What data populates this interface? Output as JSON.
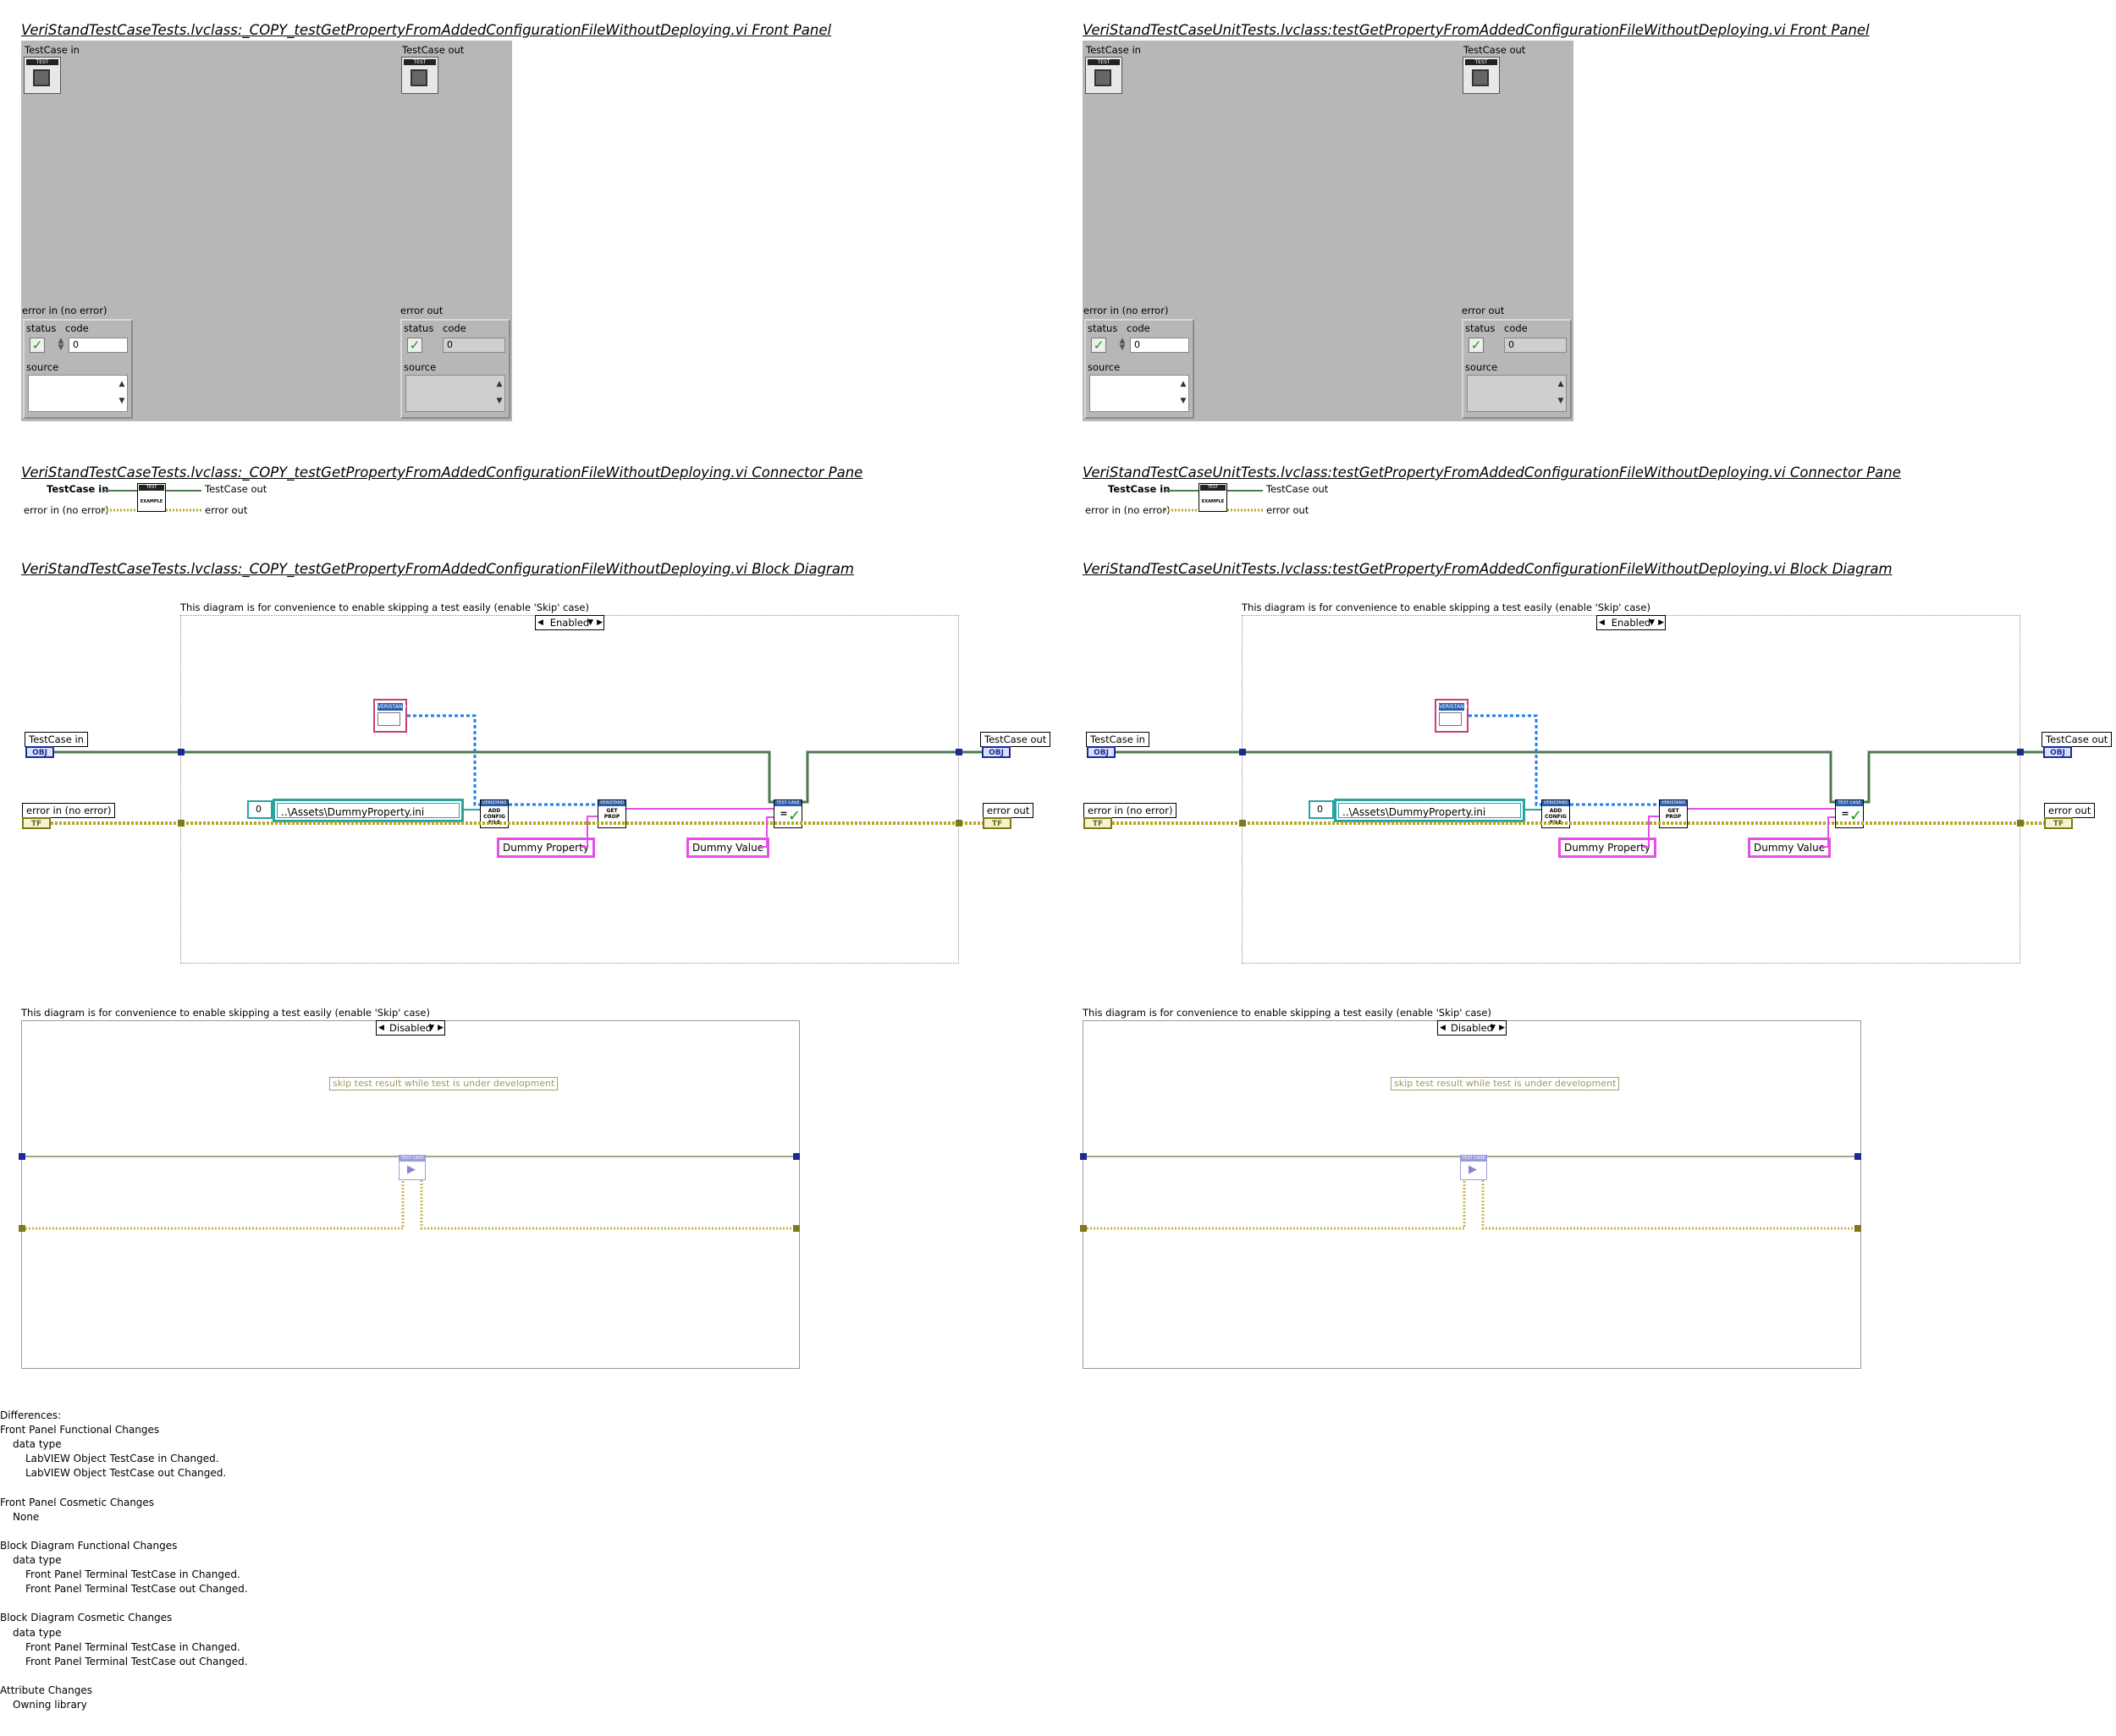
{
  "left": {
    "front_panel_title": "VeriStandTestCaseTests.lvclass:_COPY_testGetPropertyFromAddedConfigurationFileWithoutDeploying.vi Front Panel",
    "connector_pane_title": "VeriStandTestCaseTests.lvclass:_COPY_testGetPropertyFromAddedConfigurationFileWithoutDeploying.vi Connector Pane",
    "block_diagram_title": "VeriStandTestCaseTests.lvclass:_COPY_testGetPropertyFromAddedConfigurationFileWithoutDeploying.vi Block Diagram"
  },
  "right": {
    "front_panel_title": "VeriStandTestCaseUnitTests.lvclass:testGetPropertyFromAddedConfigurationFileWithoutDeploying.vi Front Panel",
    "connector_pane_title": "VeriStandTestCaseUnitTests.lvclass:testGetPropertyFromAddedConfigurationFileWithoutDeploying.vi Connector Pane",
    "block_diagram_title": "VeriStandTestCaseUnitTests.lvclass:testGetPropertyFromAddedConfigurationFileWithoutDeploying.vi Block Diagram"
  },
  "front_panel": {
    "testcase_in": "TestCase in",
    "testcase_out": "TestCase out",
    "error_in": "error in (no error)",
    "error_out": "error out",
    "status": "status",
    "code": "code",
    "source": "source",
    "code_value": "0",
    "check": "✓",
    "icon_label": "TEST"
  },
  "connector": {
    "testcase_in": "TestCase in",
    "testcase_out": "TestCase out",
    "error_in": "error in (no error)",
    "error_out": "error out",
    "icon_label": "TEST",
    "icon_text": "EXAMPLE"
  },
  "block_diagram": {
    "comment": "This diagram is for convenience to enable skipping a test easily (enable 'Skip' case)",
    "enabled_case": "Enabled",
    "disabled_case": "Disabled",
    "testcase_in": "TestCase in",
    "testcase_out": "TestCase out",
    "error_in": "error in (no error)",
    "error_out": "error out",
    "obj_badge": "OBJ",
    "err_badge": "TF",
    "path_value": "..\\Assets\\DummyProperty.ini",
    "num_value": "0",
    "dummy_property": "Dummy Property",
    "dummy_value": "Dummy Value",
    "add_config_label": "ADD CONFIG FILE",
    "get_prop_label": "GET PROP",
    "assert_label": "=",
    "skip_note": "skip test result while test is under development",
    "enum_label": "VERISTAND",
    "subvi_header": "VERISTAND",
    "assert_header": "TEST CASE",
    "skip_header": "TEST CASE"
  },
  "differences": [
    {
      "text": "Differences:",
      "indent": 0
    },
    {
      "text": "Front Panel Functional Changes",
      "indent": 0
    },
    {
      "text": "data type",
      "indent": 1
    },
    {
      "text": "LabVIEW Object TestCase in Changed.",
      "indent": 2
    },
    {
      "text": "LabVIEW Object TestCase out Changed.",
      "indent": 2
    },
    {
      "text": "",
      "indent": 0
    },
    {
      "text": "Front Panel Cosmetic Changes",
      "indent": 0
    },
    {
      "text": "None",
      "indent": 1
    },
    {
      "text": "",
      "indent": 0
    },
    {
      "text": "Block Diagram Functional Changes",
      "indent": 0
    },
    {
      "text": "data type",
      "indent": 1
    },
    {
      "text": "Front Panel Terminal TestCase in Changed.",
      "indent": 2
    },
    {
      "text": "Front Panel Terminal TestCase out Changed.",
      "indent": 2
    },
    {
      "text": "",
      "indent": 0
    },
    {
      "text": "Block Diagram Cosmetic Changes",
      "indent": 0
    },
    {
      "text": "data type",
      "indent": 1
    },
    {
      "text": "Front Panel Terminal TestCase in Changed.",
      "indent": 2
    },
    {
      "text": "Front Panel Terminal TestCase out Changed.",
      "indent": 2
    },
    {
      "text": "",
      "indent": 0
    },
    {
      "text": "Attribute Changes",
      "indent": 0
    },
    {
      "text": "Owning library",
      "indent": 1
    }
  ],
  "colors": {
    "panel_bg": "#b7b7b7",
    "class_wire": "#4d7a4d",
    "error_wire": "#b4a629",
    "string_wire": "#e64fe6",
    "refnum_wire": "#1f7ff0",
    "path_wire": "#2aa3a0"
  }
}
